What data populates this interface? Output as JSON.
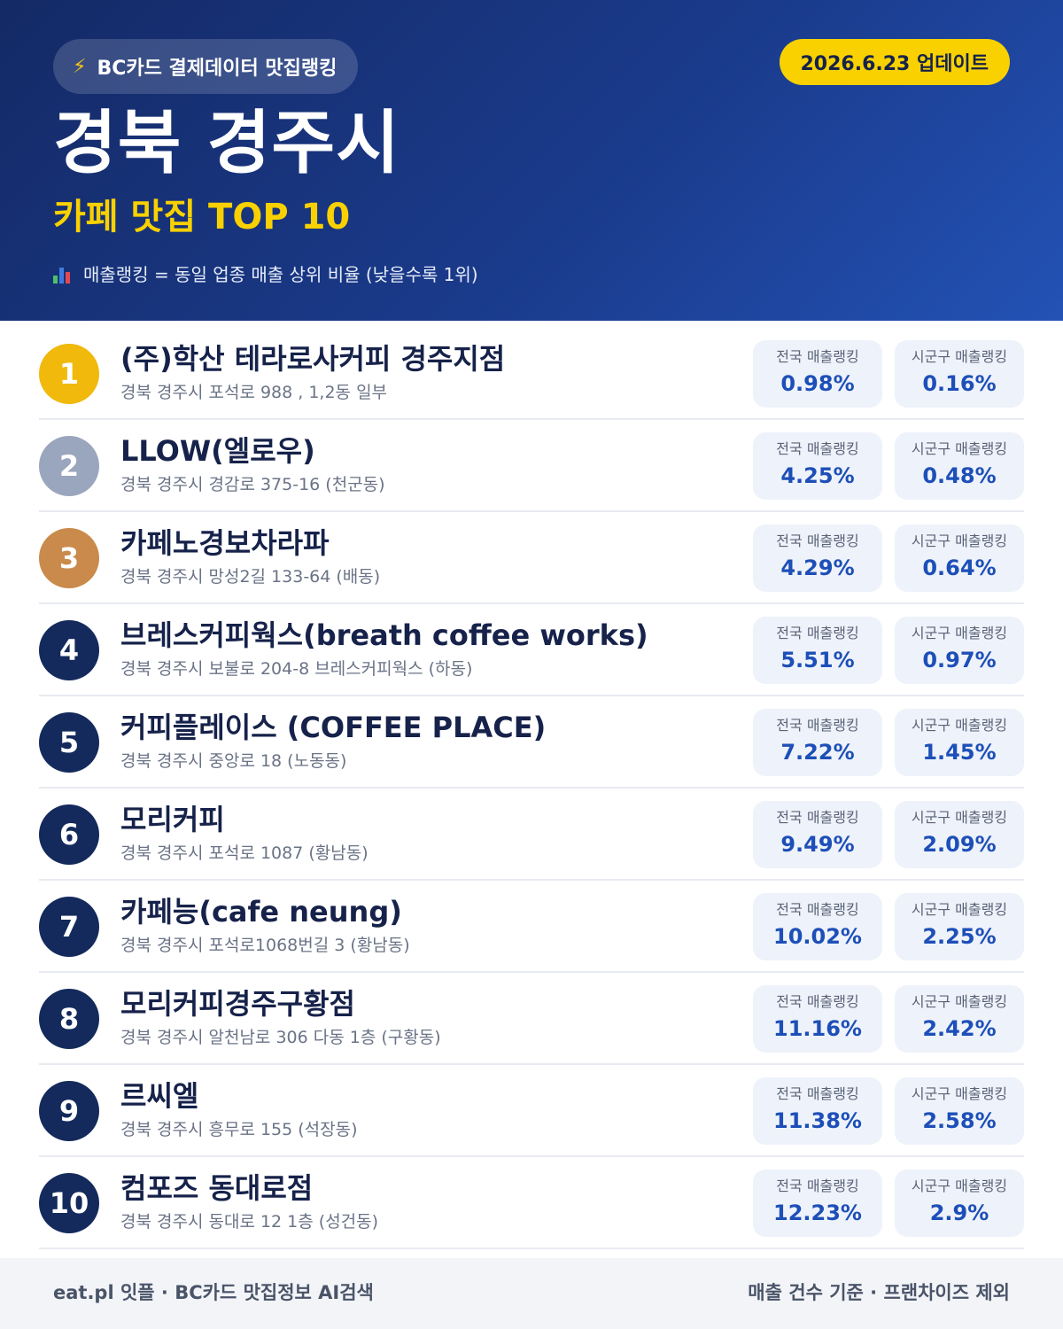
{
  "header": {
    "badge_icon": "lightning-bolt-icon",
    "badge_text": "BC카드 결제데이터 맛집랭킹",
    "update_text": "2026.6.23 업데이트",
    "title": "경북 경주시",
    "subtitle": "카페 맛집 TOP 10",
    "legend_icon": "bar-chart-icon",
    "legend_text": "매출랭킹 = 동일 업종 매출 상위 비율 (낮을수록 1위)"
  },
  "labels": {
    "national": "전국 매출랭킹",
    "local": "시군구 매출랭킹"
  },
  "colors": {
    "rank_1": "#f0b90b",
    "rank_2": "#9aa6bd",
    "rank_3": "#c98a4b",
    "rank_default": "#142a5c",
    "accent_yellow": "#f9d100",
    "value_blue": "#1d4fb8"
  },
  "restaurants": [
    {
      "rank": "1",
      "name": "(주)학산 테라로사커피 경주지점",
      "address": "경북 경주시 포석로 988 , 1,2동 일부",
      "national": "0.98%",
      "local": "0.16%"
    },
    {
      "rank": "2",
      "name": "LLOW(엘로우)",
      "address": "경북 경주시 경감로 375-16 (천군동)",
      "national": "4.25%",
      "local": "0.48%"
    },
    {
      "rank": "3",
      "name": "카페노경보차라파",
      "address": "경북 경주시 망성2길 133-64 (배동)",
      "national": "4.29%",
      "local": "0.64%"
    },
    {
      "rank": "4",
      "name": "브레스커피웍스(breath coffee works)",
      "address": "경북 경주시 보불로 204-8 브레스커피웍스 (하동)",
      "national": "5.51%",
      "local": "0.97%"
    },
    {
      "rank": "5",
      "name": "커피플레이스 (COFFEE PLACE)",
      "address": "경북 경주시 중앙로 18 (노동동)",
      "national": "7.22%",
      "local": "1.45%"
    },
    {
      "rank": "6",
      "name": "모리커피",
      "address": "경북 경주시 포석로 1087 (황남동)",
      "national": "9.49%",
      "local": "2.09%"
    },
    {
      "rank": "7",
      "name": "카페능(cafe neung)",
      "address": "경북 경주시 포석로1068번길 3 (황남동)",
      "national": "10.02%",
      "local": "2.25%"
    },
    {
      "rank": "8",
      "name": "모리커피경주구황점",
      "address": "경북 경주시 알천남로 306 다동 1층 (구황동)",
      "national": "11.16%",
      "local": "2.42%"
    },
    {
      "rank": "9",
      "name": "르씨엘",
      "address": "경북 경주시 흥무로 155 (석장동)",
      "national": "11.38%",
      "local": "2.58%"
    },
    {
      "rank": "10",
      "name": "컴포즈 동대로점",
      "address": "경북 경주시 동대로 12 1층 (성건동)",
      "national": "12.23%",
      "local": "2.9%"
    }
  ],
  "footer": {
    "left": "eat.pl 잇플 · BC카드 맛집정보 AI검색",
    "right": "매출 건수 기준 · 프랜차이즈 제외"
  }
}
